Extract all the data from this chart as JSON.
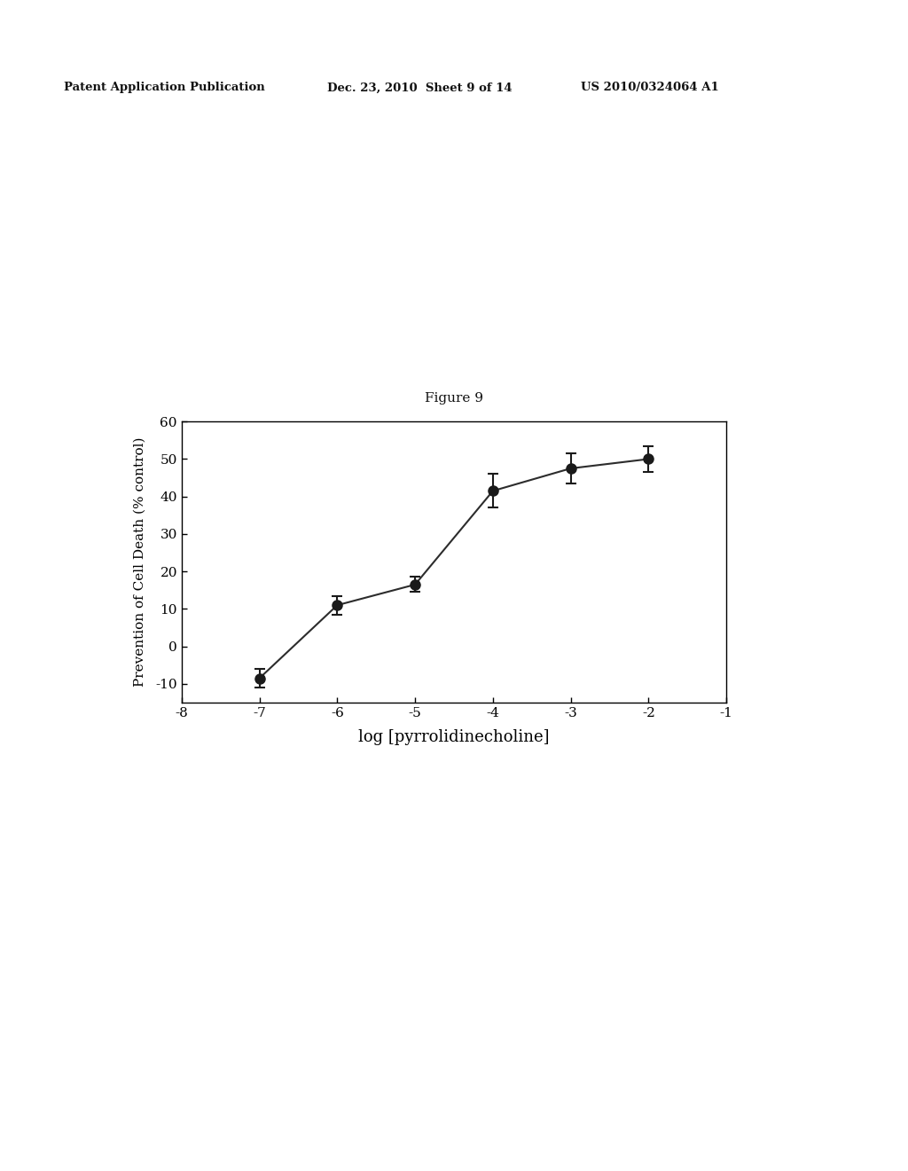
{
  "title": "Figure 9",
  "xlabel": "log [pyrrolidinecholine]",
  "ylabel": "Prevention of Cell Death (% control)",
  "x_data": [
    -7,
    -6,
    -5,
    -4,
    -3,
    -2
  ],
  "y_data": [
    -8.5,
    11.0,
    16.5,
    41.5,
    47.5,
    50.0
  ],
  "y_err": [
    2.5,
    2.5,
    2.0,
    4.5,
    4.0,
    3.5
  ],
  "xlim": [
    -8,
    -1
  ],
  "ylim": [
    -15,
    60
  ],
  "yticks": [
    -10,
    0,
    10,
    20,
    30,
    40,
    50,
    60
  ],
  "xticks": [
    -8,
    -7,
    -6,
    -5,
    -4,
    -3,
    -2,
    -1
  ],
  "line_color": "#2c2c2c",
  "marker_color": "#1a1a1a",
  "background_color": "#ffffff",
  "header_left": "Patent Application Publication",
  "header_mid": "Dec. 23, 2010  Sheet 9 of 14",
  "header_right": "US 2010/0324064 A1"
}
